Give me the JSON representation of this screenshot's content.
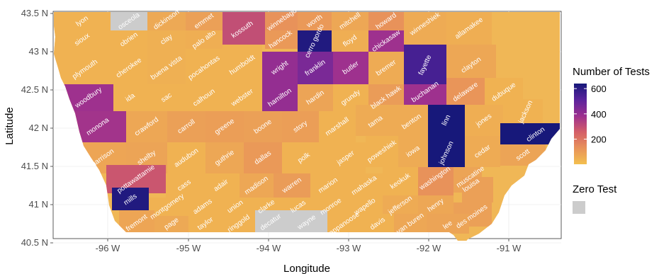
{
  "chart_data": {
    "type": "heatmap",
    "title": "",
    "xlabel": "Longitude",
    "ylabel": "Latitude",
    "x_ticks": [
      "-96 W",
      "-95 W",
      "-94 W",
      "-93 W",
      "-92 W",
      "-91 W"
    ],
    "y_ticks": [
      "43.5 N",
      "43 N",
      "42.5 N",
      "42 N",
      "41.5 N",
      "41 N",
      "40.5 N"
    ],
    "legend": {
      "title": "Number of Tests",
      "ticks": [
        "600",
        "400",
        "200"
      ],
      "range": [
        1,
        640
      ],
      "gradient": [
        "#f3c04f",
        "#e8925a",
        "#d45f68",
        "#9c2f8f",
        "#5a239c",
        "#17187a"
      ],
      "zero_title": "Zero Test",
      "zero_color": "#cccccc"
    },
    "counties": [
      {
        "name": "lyon",
        "tests": 40
      },
      {
        "name": "osceola",
        "tests": 0
      },
      {
        "name": "dickinson",
        "tests": 65
      },
      {
        "name": "emmet",
        "tests": 90
      },
      {
        "name": "kossuth",
        "tests": 300
      },
      {
        "name": "winnebago",
        "tests": 130
      },
      {
        "name": "worth",
        "tests": 110
      },
      {
        "name": "mitchell",
        "tests": 70
      },
      {
        "name": "howard",
        "tests": 130
      },
      {
        "name": "winneshiek",
        "tests": 60
      },
      {
        "name": "allamakee",
        "tests": 50
      },
      {
        "name": "sioux",
        "tests": 40
      },
      {
        "name": "obrien",
        "tests": 40
      },
      {
        "name": "clay",
        "tests": 45
      },
      {
        "name": "palo alto",
        "tests": 50
      },
      {
        "name": "hancock",
        "tests": 110
      },
      {
        "name": "cerro gordo",
        "tests": 620
      },
      {
        "name": "floyd",
        "tests": 50
      },
      {
        "name": "chickasaw",
        "tests": 380
      },
      {
        "name": "plymouth",
        "tests": 40
      },
      {
        "name": "cherokee",
        "tests": 40
      },
      {
        "name": "buena vista",
        "tests": 45
      },
      {
        "name": "pocahontas",
        "tests": 40
      },
      {
        "name": "humboldt",
        "tests": 40
      },
      {
        "name": "wright",
        "tests": 400
      },
      {
        "name": "franklin",
        "tests": 450
      },
      {
        "name": "butler",
        "tests": 380
      },
      {
        "name": "bremer",
        "tests": 60
      },
      {
        "name": "fayette",
        "tests": 550
      },
      {
        "name": "clayton",
        "tests": 70
      },
      {
        "name": "woodbury",
        "tests": 380
      },
      {
        "name": "ida",
        "tests": 40
      },
      {
        "name": "sac",
        "tests": 40
      },
      {
        "name": "calhoun",
        "tests": 40
      },
      {
        "name": "webster",
        "tests": 40
      },
      {
        "name": "hamilton",
        "tests": 400
      },
      {
        "name": "hardin",
        "tests": 80
      },
      {
        "name": "grundy",
        "tests": 40
      },
      {
        "name": "black hawk",
        "tests": 100
      },
      {
        "name": "buchanan",
        "tests": 380
      },
      {
        "name": "delaware",
        "tests": 120
      },
      {
        "name": "dubuque",
        "tests": 40
      },
      {
        "name": "monona",
        "tests": 370
      },
      {
        "name": "crawford",
        "tests": 70
      },
      {
        "name": "carroll",
        "tests": 90
      },
      {
        "name": "greene",
        "tests": 95
      },
      {
        "name": "boone",
        "tests": 90
      },
      {
        "name": "story",
        "tests": 95
      },
      {
        "name": "marshall",
        "tests": 40
      },
      {
        "name": "tama",
        "tests": 60
      },
      {
        "name": "benton",
        "tests": 60
      },
      {
        "name": "linn",
        "tests": 640
      },
      {
        "name": "jones",
        "tests": 50
      },
      {
        "name": "jackson",
        "tests": 40
      },
      {
        "name": "clinton",
        "tests": 640
      },
      {
        "name": "harrison",
        "tests": 75
      },
      {
        "name": "shelby",
        "tests": 80
      },
      {
        "name": "audubon",
        "tests": 40
      },
      {
        "name": "guthrie",
        "tests": 70
      },
      {
        "name": "dallas",
        "tests": 110
      },
      {
        "name": "polk",
        "tests": 40
      },
      {
        "name": "jasper",
        "tests": 40
      },
      {
        "name": "poweshiek",
        "tests": 40
      },
      {
        "name": "iowa",
        "tests": 60
      },
      {
        "name": "johnson",
        "tests": 640
      },
      {
        "name": "cedar",
        "tests": 60
      },
      {
        "name": "scott",
        "tests": 80
      },
      {
        "name": "pottawattamie",
        "tests": 280
      },
      {
        "name": "cass",
        "tests": 40
      },
      {
        "name": "adair",
        "tests": 40
      },
      {
        "name": "madison",
        "tests": 70
      },
      {
        "name": "warren",
        "tests": 100
      },
      {
        "name": "marion",
        "tests": 40
      },
      {
        "name": "mahaska",
        "tests": 40
      },
      {
        "name": "keokuk",
        "tests": 40
      },
      {
        "name": "washington",
        "tests": 130
      },
      {
        "name": "muscatine",
        "tests": 80
      },
      {
        "name": "louisa",
        "tests": 90
      },
      {
        "name": "mills",
        "tests": 620
      },
      {
        "name": "montgomery",
        "tests": 40
      },
      {
        "name": "adams",
        "tests": 40
      },
      {
        "name": "union",
        "tests": 40
      },
      {
        "name": "clarke",
        "tests": 40
      },
      {
        "name": "lucas",
        "tests": 40
      },
      {
        "name": "monroe",
        "tests": 40
      },
      {
        "name": "wapello",
        "tests": 40
      },
      {
        "name": "jefferson",
        "tests": 60
      },
      {
        "name": "henry",
        "tests": 70
      },
      {
        "name": "fremont",
        "tests": 75
      },
      {
        "name": "page",
        "tests": 65
      },
      {
        "name": "taylor",
        "tests": 40
      },
      {
        "name": "ringgold",
        "tests": 40
      },
      {
        "name": "decatur",
        "tests": 0
      },
      {
        "name": "wayne",
        "tests": 0
      },
      {
        "name": "appanoose",
        "tests": 40
      },
      {
        "name": "davis",
        "tests": 40
      },
      {
        "name": "van buren",
        "tests": 70
      },
      {
        "name": "des moines",
        "tests": 90
      },
      {
        "name": "lee",
        "tests": 80
      }
    ]
  }
}
